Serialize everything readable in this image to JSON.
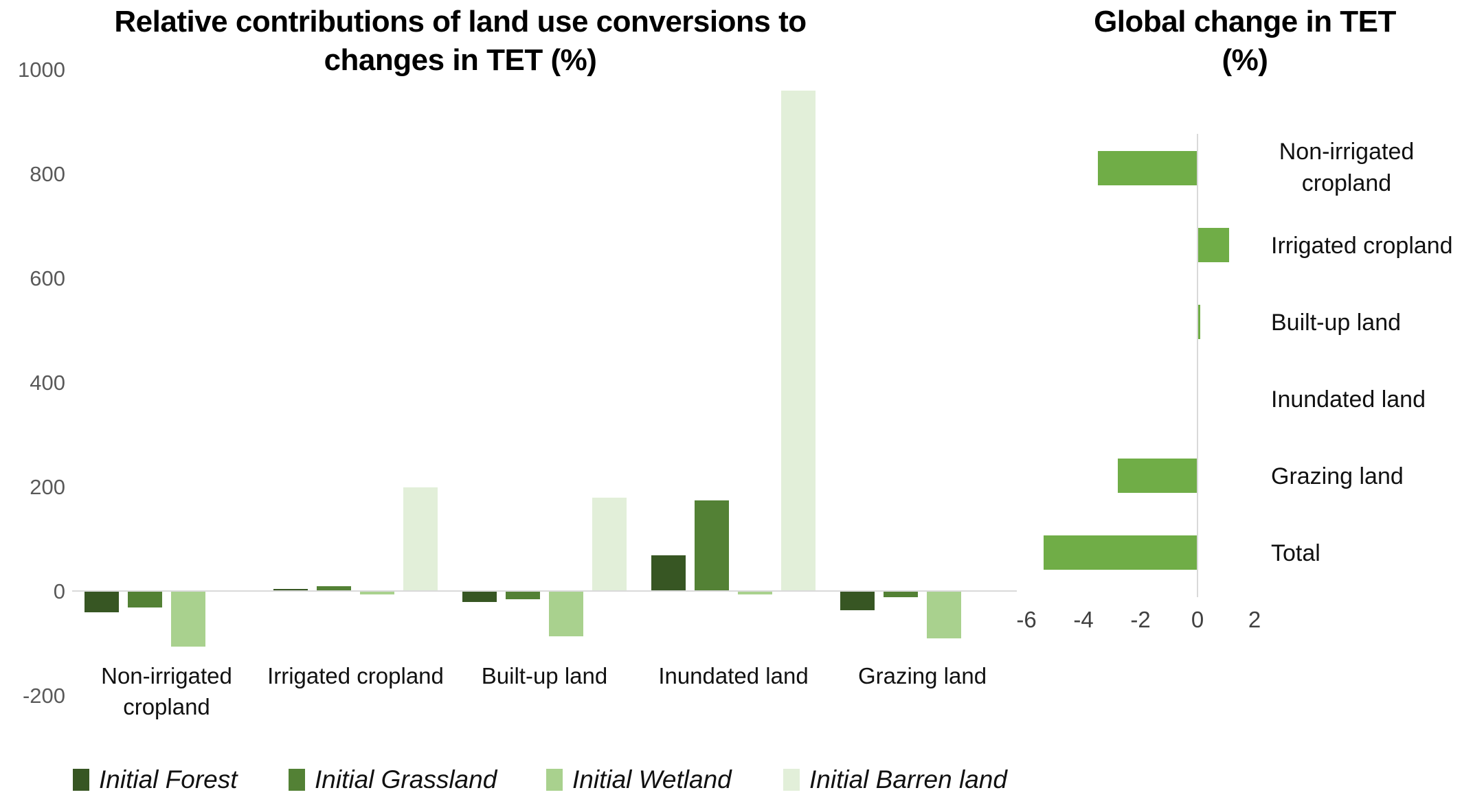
{
  "page": {
    "background": "#ffffff"
  },
  "chart_data": [
    {
      "type": "bar",
      "title": "Relative contributions of land use conversions to changes in TET (%)",
      "title_lines": [
        "Relative contributions of land use conversions to",
        "changes in TET (%)"
      ],
      "categories": [
        "Non-irrigated cropland",
        "Irrigated cropland",
        "Built-up land",
        "Inundated land",
        "Grazing land"
      ],
      "series": [
        {
          "name": "Initial Forest",
          "color": "#375623",
          "values": [
            -40,
            5,
            -20,
            70,
            -35
          ]
        },
        {
          "name": "Initial Grassland",
          "color": "#538135",
          "values": [
            -30,
            10,
            -15,
            175,
            -10
          ]
        },
        {
          "name": "Initial Wetland",
          "color": "#A9D18E",
          "values": [
            -105,
            -5,
            -85,
            -5,
            -90
          ]
        },
        {
          "name": "Initial Barren land",
          "color": "#E2EFD9",
          "values": [
            0,
            200,
            180,
            960,
            0
          ]
        }
      ],
      "ylim": [
        -200,
        1000
      ],
      "yticks": [
        1000,
        800,
        600,
        400,
        200,
        0,
        -200
      ],
      "legend_position": "bottom",
      "grid": false,
      "axis_color": "#d9d9d9",
      "tick_label_color": "#595959"
    },
    {
      "type": "bar-horizontal",
      "title": "Global change in TET (%)",
      "title_lines": [
        "Global change in TET",
        "(%)"
      ],
      "categories": [
        "Non-irrigated cropland",
        "Irrigated cropland",
        "Built-up land",
        "Inundated land",
        "Grazing land",
        "Total"
      ],
      "values": [
        -3.5,
        1.1,
        0.1,
        0,
        -2.8,
        -5.4
      ],
      "bar_color": "#70AD47",
      "xlim": [
        -6,
        2
      ],
      "xticks": [
        -6,
        -4,
        -2,
        0,
        2
      ],
      "grid": false,
      "axis_color": "#d9d9d9",
      "tick_label_color": "#404040"
    }
  ]
}
